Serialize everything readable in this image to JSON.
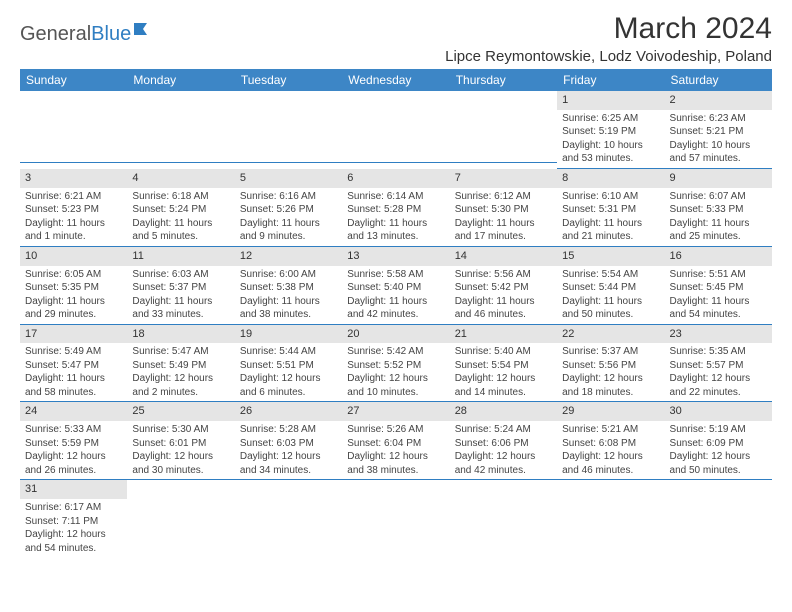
{
  "logo": {
    "text1": "General",
    "text2": "Blue"
  },
  "title": "March 2024",
  "location": "Lipce Reymontowskie, Lodz Voivodeship, Poland",
  "colors": {
    "header_bg": "#3d86c6",
    "header_text": "#ffffff",
    "daynum_bg": "#e5e5e5",
    "cell_border": "#2f7ec2",
    "logo_gray": "#555555",
    "logo_blue": "#2f7ec2"
  },
  "daysOfWeek": [
    "Sunday",
    "Monday",
    "Tuesday",
    "Wednesday",
    "Thursday",
    "Friday",
    "Saturday"
  ],
  "weeks": [
    [
      {
        "n": "",
        "sunrise": "",
        "sunset": "",
        "day1": "",
        "day2": ""
      },
      {
        "n": "",
        "sunrise": "",
        "sunset": "",
        "day1": "",
        "day2": ""
      },
      {
        "n": "",
        "sunrise": "",
        "sunset": "",
        "day1": "",
        "day2": ""
      },
      {
        "n": "",
        "sunrise": "",
        "sunset": "",
        "day1": "",
        "day2": ""
      },
      {
        "n": "",
        "sunrise": "",
        "sunset": "",
        "day1": "",
        "day2": ""
      },
      {
        "n": "1",
        "sunrise": "Sunrise: 6:25 AM",
        "sunset": "Sunset: 5:19 PM",
        "day1": "Daylight: 10 hours",
        "day2": "and 53 minutes."
      },
      {
        "n": "2",
        "sunrise": "Sunrise: 6:23 AM",
        "sunset": "Sunset: 5:21 PM",
        "day1": "Daylight: 10 hours",
        "day2": "and 57 minutes."
      }
    ],
    [
      {
        "n": "3",
        "sunrise": "Sunrise: 6:21 AM",
        "sunset": "Sunset: 5:23 PM",
        "day1": "Daylight: 11 hours",
        "day2": "and 1 minute."
      },
      {
        "n": "4",
        "sunrise": "Sunrise: 6:18 AM",
        "sunset": "Sunset: 5:24 PM",
        "day1": "Daylight: 11 hours",
        "day2": "and 5 minutes."
      },
      {
        "n": "5",
        "sunrise": "Sunrise: 6:16 AM",
        "sunset": "Sunset: 5:26 PM",
        "day1": "Daylight: 11 hours",
        "day2": "and 9 minutes."
      },
      {
        "n": "6",
        "sunrise": "Sunrise: 6:14 AM",
        "sunset": "Sunset: 5:28 PM",
        "day1": "Daylight: 11 hours",
        "day2": "and 13 minutes."
      },
      {
        "n": "7",
        "sunrise": "Sunrise: 6:12 AM",
        "sunset": "Sunset: 5:30 PM",
        "day1": "Daylight: 11 hours",
        "day2": "and 17 minutes."
      },
      {
        "n": "8",
        "sunrise": "Sunrise: 6:10 AM",
        "sunset": "Sunset: 5:31 PM",
        "day1": "Daylight: 11 hours",
        "day2": "and 21 minutes."
      },
      {
        "n": "9",
        "sunrise": "Sunrise: 6:07 AM",
        "sunset": "Sunset: 5:33 PM",
        "day1": "Daylight: 11 hours",
        "day2": "and 25 minutes."
      }
    ],
    [
      {
        "n": "10",
        "sunrise": "Sunrise: 6:05 AM",
        "sunset": "Sunset: 5:35 PM",
        "day1": "Daylight: 11 hours",
        "day2": "and 29 minutes."
      },
      {
        "n": "11",
        "sunrise": "Sunrise: 6:03 AM",
        "sunset": "Sunset: 5:37 PM",
        "day1": "Daylight: 11 hours",
        "day2": "and 33 minutes."
      },
      {
        "n": "12",
        "sunrise": "Sunrise: 6:00 AM",
        "sunset": "Sunset: 5:38 PM",
        "day1": "Daylight: 11 hours",
        "day2": "and 38 minutes."
      },
      {
        "n": "13",
        "sunrise": "Sunrise: 5:58 AM",
        "sunset": "Sunset: 5:40 PM",
        "day1": "Daylight: 11 hours",
        "day2": "and 42 minutes."
      },
      {
        "n": "14",
        "sunrise": "Sunrise: 5:56 AM",
        "sunset": "Sunset: 5:42 PM",
        "day1": "Daylight: 11 hours",
        "day2": "and 46 minutes."
      },
      {
        "n": "15",
        "sunrise": "Sunrise: 5:54 AM",
        "sunset": "Sunset: 5:44 PM",
        "day1": "Daylight: 11 hours",
        "day2": "and 50 minutes."
      },
      {
        "n": "16",
        "sunrise": "Sunrise: 5:51 AM",
        "sunset": "Sunset: 5:45 PM",
        "day1": "Daylight: 11 hours",
        "day2": "and 54 minutes."
      }
    ],
    [
      {
        "n": "17",
        "sunrise": "Sunrise: 5:49 AM",
        "sunset": "Sunset: 5:47 PM",
        "day1": "Daylight: 11 hours",
        "day2": "and 58 minutes."
      },
      {
        "n": "18",
        "sunrise": "Sunrise: 5:47 AM",
        "sunset": "Sunset: 5:49 PM",
        "day1": "Daylight: 12 hours",
        "day2": "and 2 minutes."
      },
      {
        "n": "19",
        "sunrise": "Sunrise: 5:44 AM",
        "sunset": "Sunset: 5:51 PM",
        "day1": "Daylight: 12 hours",
        "day2": "and 6 minutes."
      },
      {
        "n": "20",
        "sunrise": "Sunrise: 5:42 AM",
        "sunset": "Sunset: 5:52 PM",
        "day1": "Daylight: 12 hours",
        "day2": "and 10 minutes."
      },
      {
        "n": "21",
        "sunrise": "Sunrise: 5:40 AM",
        "sunset": "Sunset: 5:54 PM",
        "day1": "Daylight: 12 hours",
        "day2": "and 14 minutes."
      },
      {
        "n": "22",
        "sunrise": "Sunrise: 5:37 AM",
        "sunset": "Sunset: 5:56 PM",
        "day1": "Daylight: 12 hours",
        "day2": "and 18 minutes."
      },
      {
        "n": "23",
        "sunrise": "Sunrise: 5:35 AM",
        "sunset": "Sunset: 5:57 PM",
        "day1": "Daylight: 12 hours",
        "day2": "and 22 minutes."
      }
    ],
    [
      {
        "n": "24",
        "sunrise": "Sunrise: 5:33 AM",
        "sunset": "Sunset: 5:59 PM",
        "day1": "Daylight: 12 hours",
        "day2": "and 26 minutes."
      },
      {
        "n": "25",
        "sunrise": "Sunrise: 5:30 AM",
        "sunset": "Sunset: 6:01 PM",
        "day1": "Daylight: 12 hours",
        "day2": "and 30 minutes."
      },
      {
        "n": "26",
        "sunrise": "Sunrise: 5:28 AM",
        "sunset": "Sunset: 6:03 PM",
        "day1": "Daylight: 12 hours",
        "day2": "and 34 minutes."
      },
      {
        "n": "27",
        "sunrise": "Sunrise: 5:26 AM",
        "sunset": "Sunset: 6:04 PM",
        "day1": "Daylight: 12 hours",
        "day2": "and 38 minutes."
      },
      {
        "n": "28",
        "sunrise": "Sunrise: 5:24 AM",
        "sunset": "Sunset: 6:06 PM",
        "day1": "Daylight: 12 hours",
        "day2": "and 42 minutes."
      },
      {
        "n": "29",
        "sunrise": "Sunrise: 5:21 AM",
        "sunset": "Sunset: 6:08 PM",
        "day1": "Daylight: 12 hours",
        "day2": "and 46 minutes."
      },
      {
        "n": "30",
        "sunrise": "Sunrise: 5:19 AM",
        "sunset": "Sunset: 6:09 PM",
        "day1": "Daylight: 12 hours",
        "day2": "and 50 minutes."
      }
    ],
    [
      {
        "n": "31",
        "sunrise": "Sunrise: 6:17 AM",
        "sunset": "Sunset: 7:11 PM",
        "day1": "Daylight: 12 hours",
        "day2": "and 54 minutes."
      },
      {
        "n": "",
        "sunrise": "",
        "sunset": "",
        "day1": "",
        "day2": ""
      },
      {
        "n": "",
        "sunrise": "",
        "sunset": "",
        "day1": "",
        "day2": ""
      },
      {
        "n": "",
        "sunrise": "",
        "sunset": "",
        "day1": "",
        "day2": ""
      },
      {
        "n": "",
        "sunrise": "",
        "sunset": "",
        "day1": "",
        "day2": ""
      },
      {
        "n": "",
        "sunrise": "",
        "sunset": "",
        "day1": "",
        "day2": ""
      },
      {
        "n": "",
        "sunrise": "",
        "sunset": "",
        "day1": "",
        "day2": ""
      }
    ]
  ]
}
